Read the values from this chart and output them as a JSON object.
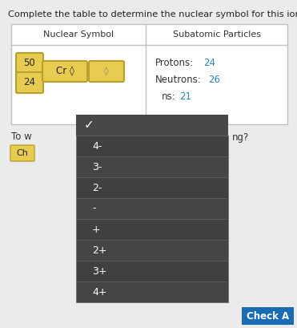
{
  "title": "Complete the table to determine the nuclear symbol for this ion.",
  "bg_color": "#ebebeb",
  "col1_header": "Nuclear Symbol",
  "col2_header": "Subatomic Particles",
  "protons_label": "Protons:  ",
  "protons_value": "24",
  "neutrons_label": "Neutrons:  ",
  "neutrons_value": "26",
  "electrons_label": "ns:  ",
  "electrons_value": "21",
  "box_50": "50",
  "box_24": "24",
  "symbol": "Cr ◊",
  "dropdown_items": [
    "✓",
    "4-",
    "3-",
    "2-",
    "-",
    "+",
    "2+",
    "3+",
    "4+"
  ],
  "dropdown_bg": "#3d3d3d",
  "dropdown_text_color": "#ffffff",
  "yellow_box_color": "#e8cc50",
  "yellow_box_border": "#b8a030",
  "number_color": "#2e86c1",
  "bottom_button_color": "#1a6cb5",
  "bottom_button_text": "Check A",
  "left_text1": "To w",
  "left_text2": "Ch",
  "right_text": "ng?"
}
